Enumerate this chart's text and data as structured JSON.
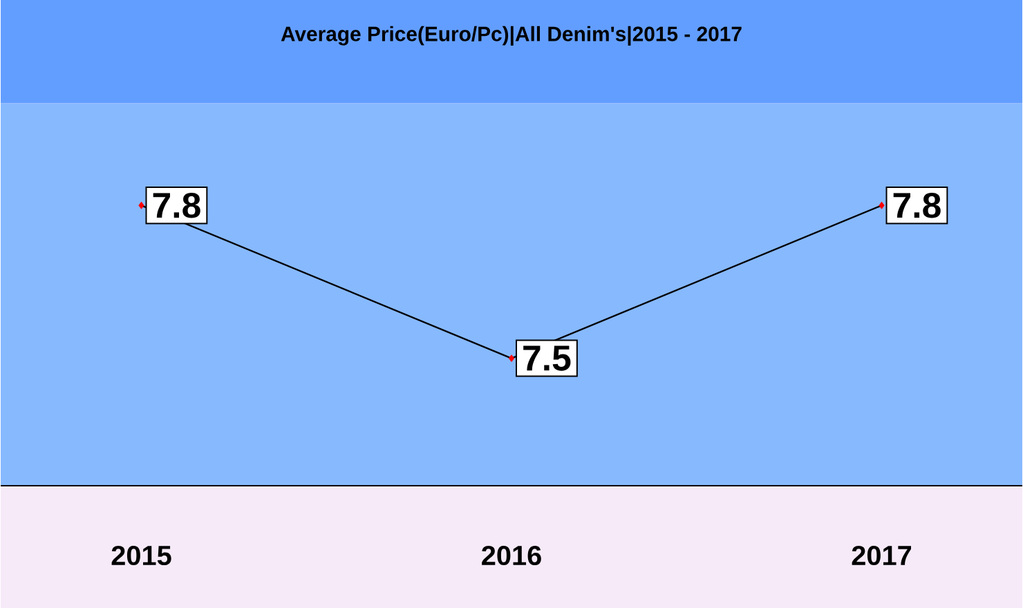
{
  "chart_data": {
    "type": "line",
    "title": "Average Price(Euro/Pc)|All Denim's|2015 - 2017",
    "categories": [
      "2015",
      "2016",
      "2017"
    ],
    "values": [
      7.8,
      7.5,
      7.8
    ],
    "color": "#000000",
    "colors": [
      "#ff0000",
      "#ff0000",
      "#ff0000"
    ],
    "marker": "diamond",
    "data_labels": true,
    "ylim": [
      7.25,
      8.0
    ],
    "tick_labels": "x"
  }
}
